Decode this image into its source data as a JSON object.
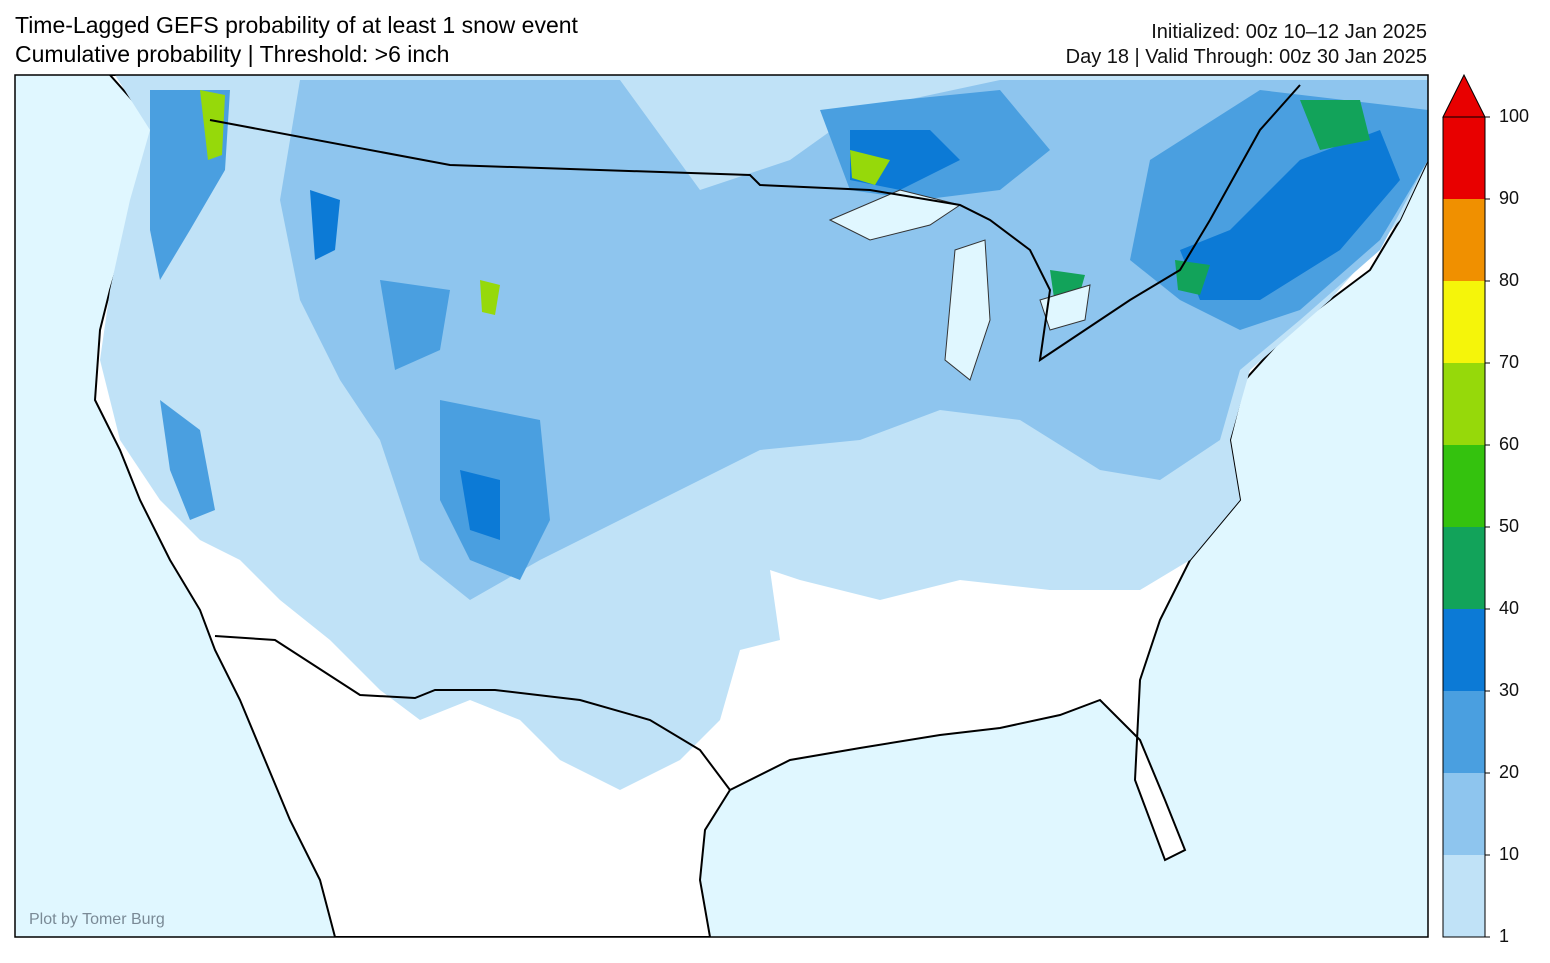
{
  "header": {
    "title": "Time-Lagged GEFS probability of at least 1 snow event",
    "subtitle": "Cumulative probability | Threshold: >6 inch",
    "initialized": "Initialized: 00z 10–12 Jan 2025",
    "valid": "Day 18 | Valid Through: 00z 30 Jan 2025"
  },
  "colorbar": {
    "ticks": [
      1,
      10,
      20,
      30,
      40,
      50,
      60,
      70,
      80,
      90,
      100
    ],
    "colors": [
      "#c0e2f7",
      "#8ec5ee",
      "#4a9fe0",
      "#0c7ad6",
      "#12a35a",
      "#34c20e",
      "#96d90a",
      "#f5f50a",
      "#f09000",
      "#e80000"
    ]
  },
  "credit": "Plot by Tomer Burg"
}
